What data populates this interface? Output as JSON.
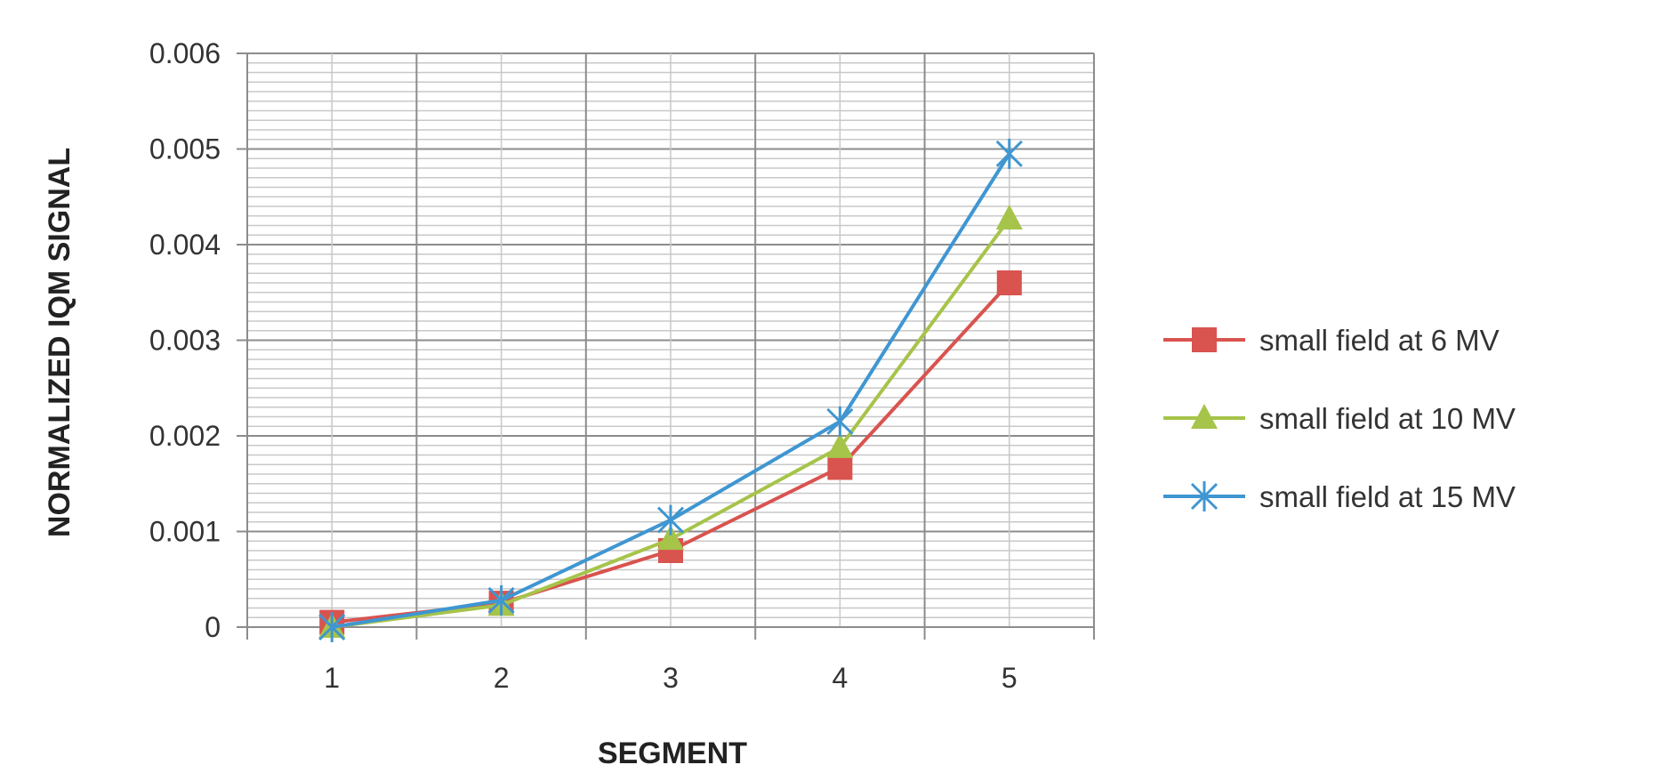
{
  "chart_data": {
    "type": "line",
    "title": "",
    "xlabel": "SEGMENT",
    "ylabel": "NORMALIZED  IQM SIGNAL",
    "categories": [
      "1",
      "2",
      "3",
      "4",
      "5"
    ],
    "y_ticks": [
      "0",
      "0.001",
      "0.002",
      "0.003",
      "0.004",
      "0.005",
      "0.006"
    ],
    "ylim": [
      0,
      0.006
    ],
    "grid": true,
    "minor_grid": true,
    "legend_position": "right",
    "series": [
      {
        "name": "small field at 6 MV",
        "color": "#d9534f",
        "marker": "square",
        "values": [
          5e-05,
          0.00025,
          0.0008,
          0.00167,
          0.0036
        ]
      },
      {
        "name": "small field at 10 MV",
        "color": "#a6c44a",
        "marker": "triangle",
        "values": [
          0.0,
          0.00023,
          0.00092,
          0.00188,
          0.00427
        ]
      },
      {
        "name": "small field at 15 MV",
        "color": "#3f96d1",
        "marker": "star",
        "values": [
          0.0,
          0.00028,
          0.00112,
          0.00215,
          0.00495
        ]
      }
    ]
  }
}
